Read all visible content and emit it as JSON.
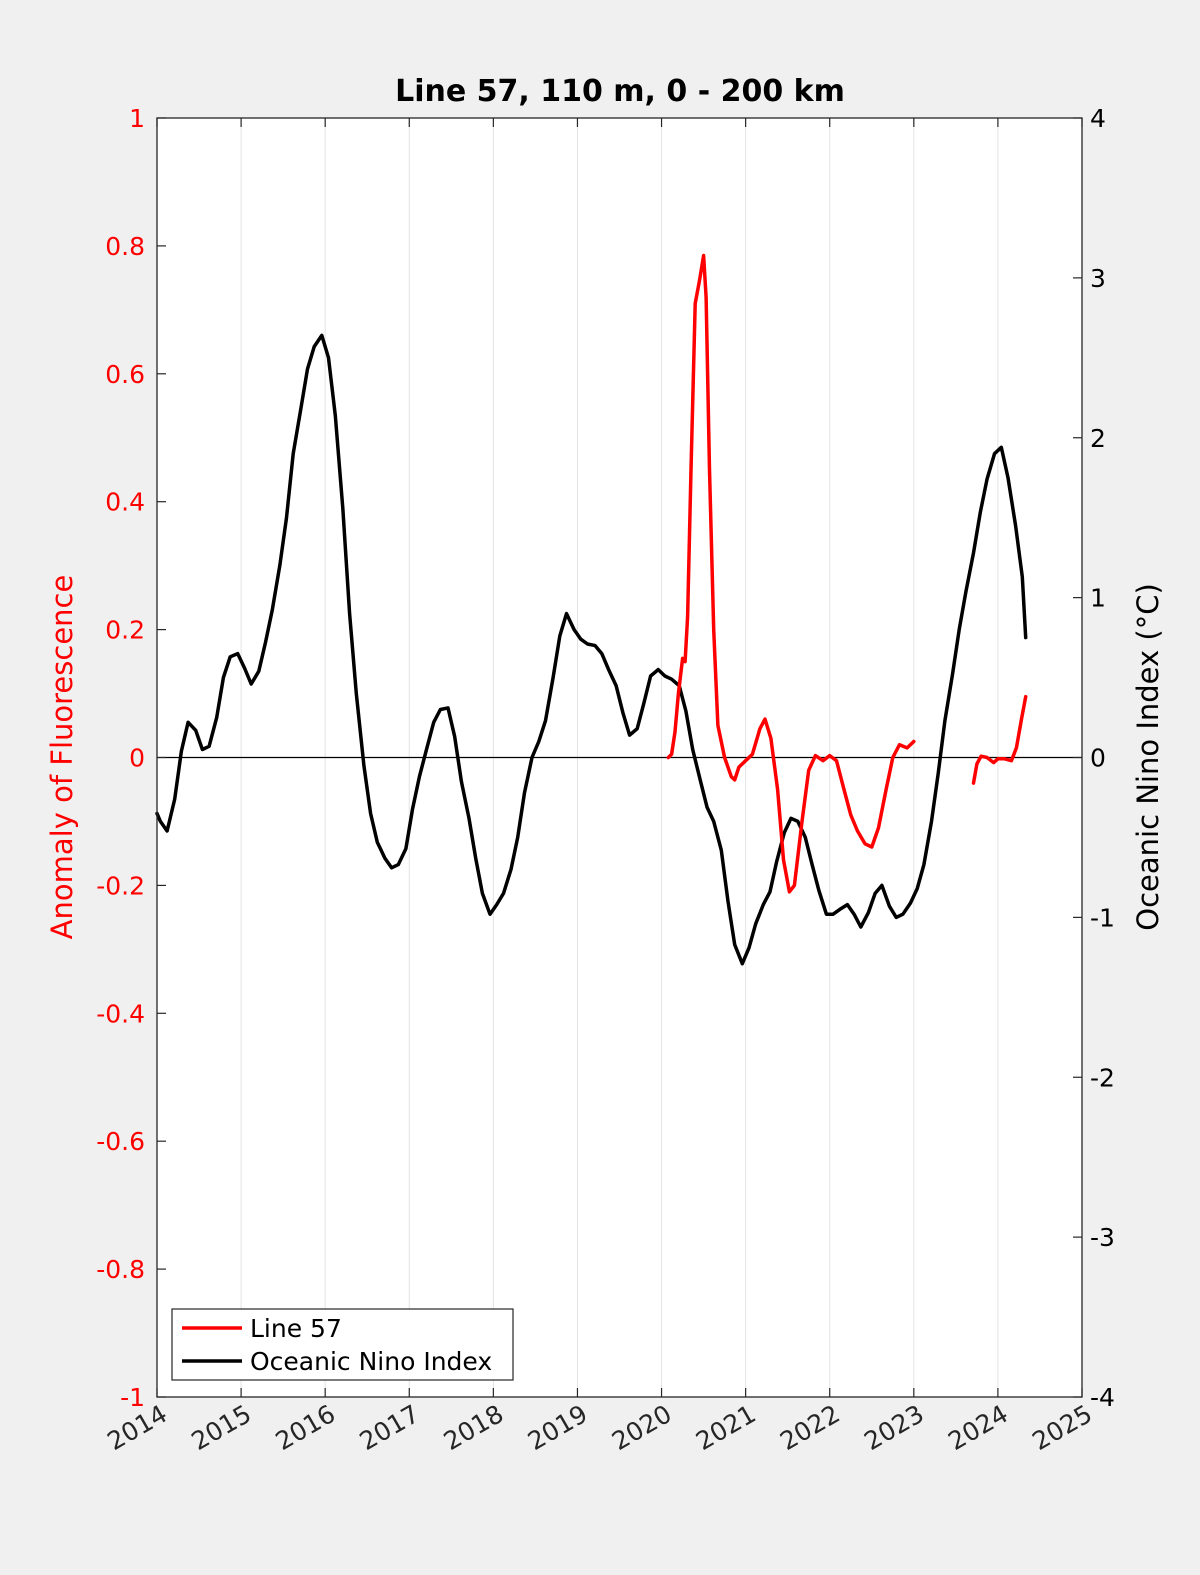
{
  "chart_data": {
    "type": "line",
    "title": "Line 57, 110 m, 0 - 200 km",
    "ylabel": "Anomaly of Fluorescence",
    "y2label": "Oceanic Nino Index (°C)",
    "xlim": [
      2014,
      2025
    ],
    "ylim": [
      -1,
      1
    ],
    "y2lim": [
      -4,
      4
    ],
    "xticks": [
      "2014",
      "2015",
      "2016",
      "2017",
      "2018",
      "2019",
      "2020",
      "2021",
      "2022",
      "2023",
      "2024",
      "2025"
    ],
    "yticks": [
      "-1",
      "-0.8",
      "-0.6",
      "-0.4",
      "-0.2",
      "0",
      "0.2",
      "0.4",
      "0.6",
      "0.8",
      "1"
    ],
    "y2ticks": [
      "-4",
      "-3",
      "-2",
      "-1",
      "0",
      "1",
      "2",
      "3",
      "4"
    ],
    "grid": "vertical",
    "legend_position": "bottom-left",
    "colors": {
      "left_axis": "#ff0000",
      "right_axis": "#000000",
      "background": "#f0f0f0",
      "plot": "#ffffff"
    },
    "series": [
      {
        "name": "Line 57",
        "axis": "left",
        "color": "#ff0000",
        "segments": [
          [
            [
              2020.08,
              0.0
            ],
            [
              2020.12,
              0.005
            ],
            [
              2020.16,
              0.04
            ],
            [
              2020.2,
              0.1
            ],
            [
              2020.25,
              0.155
            ],
            [
              2020.28,
              0.15
            ],
            [
              2020.31,
              0.22
            ],
            [
              2020.35,
              0.45
            ],
            [
              2020.4,
              0.71
            ],
            [
              2020.45,
              0.745
            ],
            [
              2020.5,
              0.785
            ],
            [
              2020.53,
              0.72
            ],
            [
              2020.57,
              0.45
            ],
            [
              2020.62,
              0.2
            ],
            [
              2020.67,
              0.05
            ],
            [
              2020.75,
              0.0
            ],
            [
              2020.83,
              -0.03
            ],
            [
              2020.87,
              -0.035
            ],
            [
              2020.92,
              -0.015
            ],
            [
              2021.0,
              -0.005
            ],
            [
              2021.08,
              0.005
            ],
            [
              2021.17,
              0.045
            ],
            [
              2021.23,
              0.06
            ],
            [
              2021.3,
              0.03
            ],
            [
              2021.38,
              -0.05
            ],
            [
              2021.45,
              -0.16
            ],
            [
              2021.52,
              -0.21
            ],
            [
              2021.58,
              -0.2
            ],
            [
              2021.67,
              -0.1
            ],
            [
              2021.75,
              -0.02
            ],
            [
              2021.83,
              0.003
            ],
            [
              2021.92,
              -0.005
            ],
            [
              2022.0,
              0.003
            ],
            [
              2022.08,
              -0.005
            ],
            [
              2022.17,
              -0.05
            ],
            [
              2022.25,
              -0.09
            ],
            [
              2022.33,
              -0.115
            ],
            [
              2022.42,
              -0.135
            ],
            [
              2022.5,
              -0.14
            ],
            [
              2022.58,
              -0.11
            ],
            [
              2022.67,
              -0.05
            ],
            [
              2022.75,
              0.0
            ],
            [
              2022.83,
              0.02
            ],
            [
              2022.92,
              0.015
            ],
            [
              2023.0,
              0.025
            ]
          ],
          [
            [
              2023.71,
              -0.04
            ],
            [
              2023.75,
              -0.01
            ],
            [
              2023.8,
              0.002
            ],
            [
              2023.87,
              0.0
            ],
            [
              2023.95,
              -0.008
            ],
            [
              2024.0,
              -0.002
            ],
            [
              2024.08,
              -0.002
            ],
            [
              2024.16,
              -0.005
            ],
            [
              2024.22,
              0.015
            ],
            [
              2024.28,
              0.06
            ],
            [
              2024.33,
              0.095
            ]
          ]
        ]
      },
      {
        "name": "Oceanic Nino Index",
        "axis": "right",
        "color": "#000000",
        "segments": [
          [
            [
              2014.0,
              -0.35
            ],
            [
              2014.04,
              -0.4
            ],
            [
              2014.12,
              -0.46
            ],
            [
              2014.21,
              -0.26
            ],
            [
              2014.29,
              0.04
            ],
            [
              2014.37,
              0.22
            ],
            [
              2014.46,
              0.17
            ],
            [
              2014.54,
              0.05
            ],
            [
              2014.62,
              0.07
            ],
            [
              2014.71,
              0.25
            ],
            [
              2014.79,
              0.5
            ],
            [
              2014.87,
              0.63
            ],
            [
              2014.96,
              0.65
            ],
            [
              2015.04,
              0.56
            ],
            [
              2015.12,
              0.46
            ],
            [
              2015.21,
              0.54
            ],
            [
              2015.29,
              0.72
            ],
            [
              2015.37,
              0.92
            ],
            [
              2015.46,
              1.2
            ],
            [
              2015.54,
              1.5
            ],
            [
              2015.62,
              1.9
            ],
            [
              2015.71,
              2.18
            ],
            [
              2015.79,
              2.43
            ],
            [
              2015.87,
              2.57
            ],
            [
              2015.96,
              2.64
            ],
            [
              2016.04,
              2.5
            ],
            [
              2016.12,
              2.14
            ],
            [
              2016.21,
              1.56
            ],
            [
              2016.29,
              0.9
            ],
            [
              2016.37,
              0.4
            ],
            [
              2016.46,
              -0.05
            ],
            [
              2016.54,
              -0.35
            ],
            [
              2016.62,
              -0.53
            ],
            [
              2016.71,
              -0.63
            ],
            [
              2016.79,
              -0.69
            ],
            [
              2016.87,
              -0.67
            ],
            [
              2016.96,
              -0.57
            ],
            [
              2017.04,
              -0.32
            ],
            [
              2017.12,
              -0.12
            ],
            [
              2017.21,
              0.06
            ],
            [
              2017.29,
              0.22
            ],
            [
              2017.37,
              0.3
            ],
            [
              2017.46,
              0.31
            ],
            [
              2017.54,
              0.13
            ],
            [
              2017.62,
              -0.15
            ],
            [
              2017.71,
              -0.38
            ],
            [
              2017.79,
              -0.63
            ],
            [
              2017.87,
              -0.85
            ],
            [
              2017.96,
              -0.98
            ],
            [
              2018.04,
              -0.92
            ],
            [
              2018.12,
              -0.85
            ],
            [
              2018.21,
              -0.7
            ],
            [
              2018.29,
              -0.5
            ],
            [
              2018.37,
              -0.22
            ],
            [
              2018.46,
              0.0
            ],
            [
              2018.54,
              0.1
            ],
            [
              2018.62,
              0.23
            ],
            [
              2018.71,
              0.5
            ],
            [
              2018.79,
              0.76
            ],
            [
              2018.87,
              0.9
            ],
            [
              2018.96,
              0.8
            ],
            [
              2019.04,
              0.74
            ],
            [
              2019.12,
              0.71
            ],
            [
              2019.21,
              0.7
            ],
            [
              2019.29,
              0.65
            ],
            [
              2019.37,
              0.55
            ],
            [
              2019.46,
              0.45
            ],
            [
              2019.54,
              0.28
            ],
            [
              2019.62,
              0.14
            ],
            [
              2019.71,
              0.18
            ],
            [
              2019.79,
              0.34
            ],
            [
              2019.87,
              0.51
            ],
            [
              2019.96,
              0.55
            ],
            [
              2020.04,
              0.51
            ],
            [
              2020.12,
              0.49
            ],
            [
              2020.21,
              0.45
            ],
            [
              2020.29,
              0.29
            ],
            [
              2020.37,
              0.05
            ],
            [
              2020.46,
              -0.14
            ],
            [
              2020.54,
              -0.31
            ],
            [
              2020.62,
              -0.4
            ],
            [
              2020.71,
              -0.58
            ],
            [
              2020.79,
              -0.9
            ],
            [
              2020.87,
              -1.17
            ],
            [
              2020.96,
              -1.29
            ],
            [
              2021.04,
              -1.19
            ],
            [
              2021.12,
              -1.04
            ],
            [
              2021.21,
              -0.92
            ],
            [
              2021.29,
              -0.84
            ],
            [
              2021.37,
              -0.65
            ],
            [
              2021.46,
              -0.47
            ],
            [
              2021.54,
              -0.38
            ],
            [
              2021.62,
              -0.4
            ],
            [
              2021.71,
              -0.5
            ],
            [
              2021.79,
              -0.67
            ],
            [
              2021.87,
              -0.83
            ],
            [
              2021.96,
              -0.98
            ],
            [
              2022.04,
              -0.98
            ],
            [
              2022.12,
              -0.95
            ],
            [
              2022.21,
              -0.92
            ],
            [
              2022.29,
              -0.98
            ],
            [
              2022.37,
              -1.06
            ],
            [
              2022.46,
              -0.97
            ],
            [
              2022.54,
              -0.85
            ],
            [
              2022.62,
              -0.8
            ],
            [
              2022.71,
              -0.93
            ],
            [
              2022.79,
              -1.0
            ],
            [
              2022.87,
              -0.98
            ],
            [
              2022.96,
              -0.91
            ],
            [
              2023.04,
              -0.82
            ],
            [
              2023.12,
              -0.67
            ],
            [
              2023.21,
              -0.4
            ],
            [
              2023.29,
              -0.1
            ],
            [
              2023.37,
              0.23
            ],
            [
              2023.46,
              0.52
            ],
            [
              2023.54,
              0.8
            ],
            [
              2023.62,
              1.04
            ],
            [
              2023.71,
              1.28
            ],
            [
              2023.79,
              1.53
            ],
            [
              2023.87,
              1.74
            ],
            [
              2023.96,
              1.9
            ],
            [
              2024.04,
              1.94
            ],
            [
              2024.12,
              1.75
            ],
            [
              2024.21,
              1.45
            ],
            [
              2024.29,
              1.13
            ],
            [
              2024.33,
              0.75
            ]
          ]
        ]
      }
    ]
  }
}
